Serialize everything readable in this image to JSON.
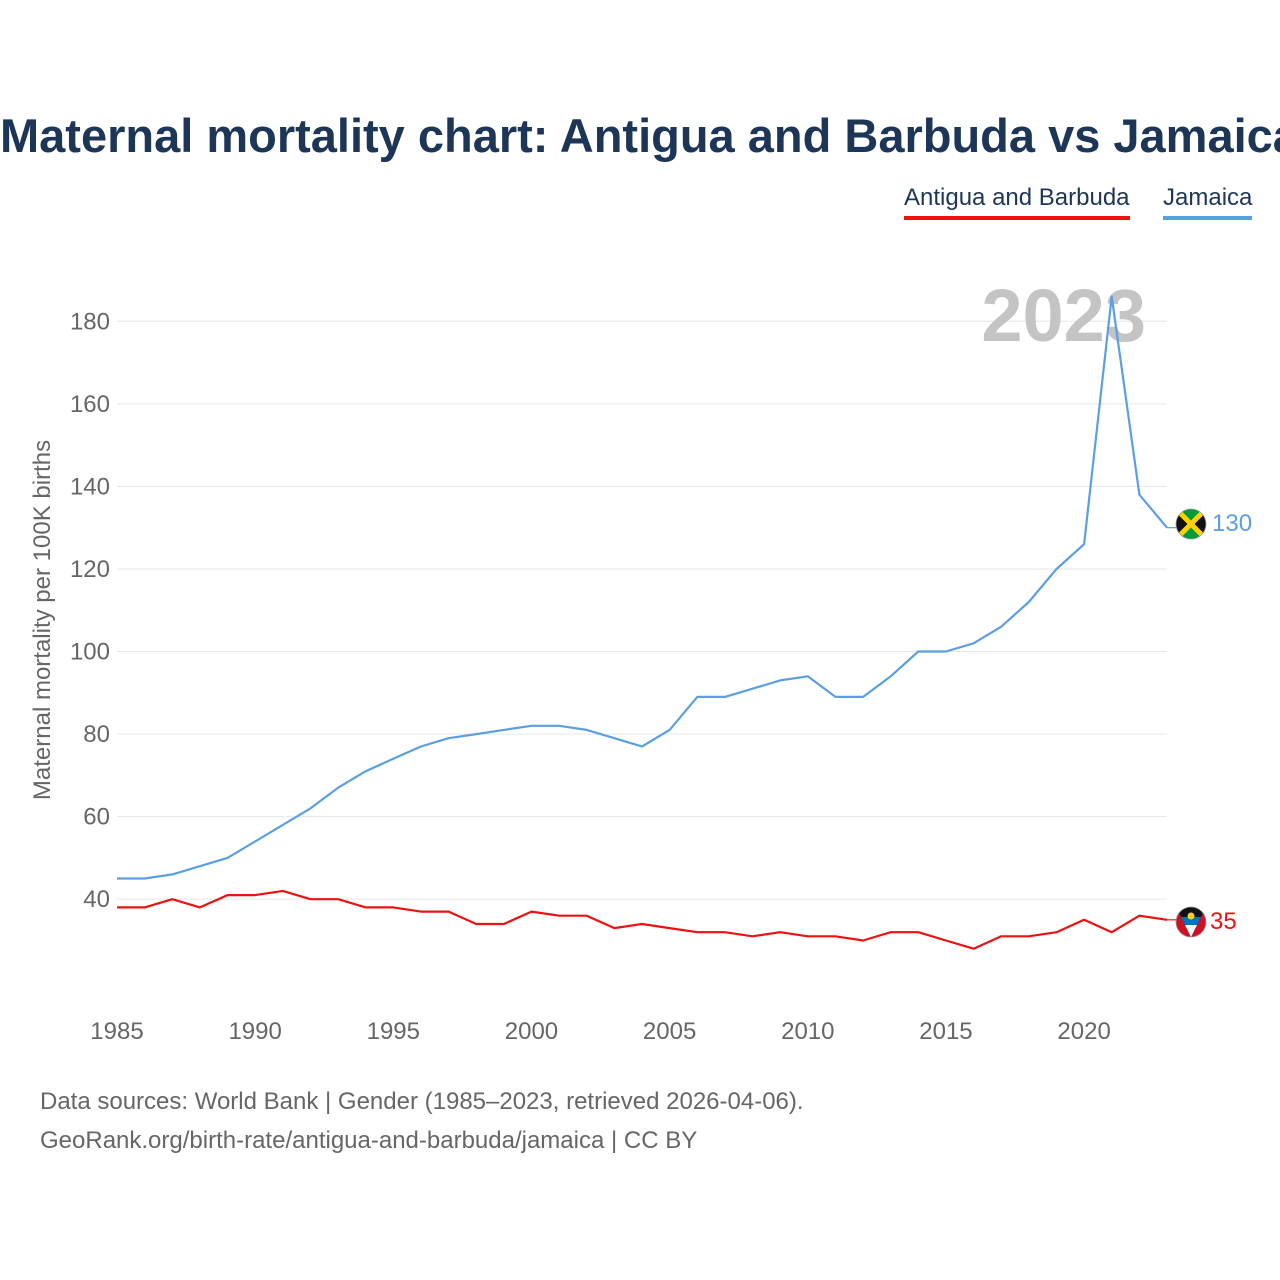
{
  "title": "Maternal mortality chart: Antigua and Barbuda vs Jamaica",
  "legend": [
    {
      "label": "Antigua and Barbuda",
      "color": "#ee1111"
    },
    {
      "label": "Jamaica",
      "color": "#5b9fe3"
    }
  ],
  "source": {
    "line1": "Data sources: World Bank | Gender (1985–2023, retrieved 2026-04-06).",
    "line2": "GeoRank.org/birth-rate/antigua-and-barbuda/jamaica | CC BY"
  },
  "chart_data": {
    "type": "line",
    "title": "Maternal mortality chart: Antigua and Barbuda vs Jamaica",
    "xlabel": "",
    "ylabel": "Maternal mortality per 100K births",
    "year_overlay": "2023",
    "x": [
      1985,
      1986,
      1987,
      1988,
      1989,
      1990,
      1991,
      1992,
      1993,
      1994,
      1995,
      1996,
      1997,
      1998,
      1999,
      2000,
      2001,
      2002,
      2003,
      2004,
      2005,
      2006,
      2007,
      2008,
      2009,
      2010,
      2011,
      2012,
      2013,
      2014,
      2015,
      2016,
      2017,
      2018,
      2019,
      2020,
      2021,
      2022,
      2023
    ],
    "xlim": [
      1985,
      2023
    ],
    "ylim": [
      18,
      190
    ],
    "xticks": [
      1985,
      1990,
      1995,
      2000,
      2005,
      2010,
      2015,
      2020
    ],
    "yticks": [
      40,
      60,
      80,
      100,
      120,
      140,
      160,
      180
    ],
    "grid": true,
    "series": [
      {
        "name": "Jamaica",
        "color": "#5b9fe3",
        "end_label": "130",
        "values": [
          45,
          45,
          46,
          48,
          50,
          54,
          58,
          62,
          67,
          71,
          74,
          77,
          79,
          80,
          81,
          82,
          82,
          81,
          79,
          77,
          81,
          89,
          89,
          91,
          93,
          94,
          89,
          89,
          94,
          100,
          100,
          102,
          106,
          112,
          120,
          126,
          186,
          138,
          130
        ]
      },
      {
        "name": "Antigua and Barbuda",
        "color": "#ee1111",
        "end_label": "35",
        "values": [
          38,
          38,
          40,
          38,
          41,
          41,
          42,
          40,
          40,
          38,
          38,
          37,
          37,
          34,
          34,
          37,
          36,
          36,
          33,
          34,
          33,
          32,
          32,
          31,
          32,
          31,
          31,
          30,
          32,
          32,
          30,
          28,
          31,
          31,
          32,
          35,
          32,
          36,
          35
        ]
      }
    ]
  }
}
